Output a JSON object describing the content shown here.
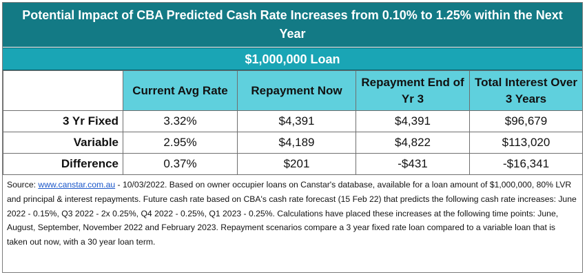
{
  "title": "Potential Impact of CBA Predicted Cash Rate Increases from 0.10% to 1.25% within the Next Year",
  "subtitle": "$1,000,000 Loan",
  "columns": [
    "Current Avg Rate",
    "Repayment Now",
    "Repayment End of Yr 3",
    "Total Interest Over 3 Years"
  ],
  "rows": [
    {
      "label": "3 Yr Fixed",
      "values": [
        "3.32%",
        "$4,391",
        "$4,391",
        "$96,679"
      ]
    },
    {
      "label": "Variable",
      "values": [
        "2.95%",
        "$4,189",
        "$4,822",
        "$113,020"
      ]
    },
    {
      "label": "Difference",
      "values": [
        "0.37%",
        "$201",
        "-$431",
        "-$16,341"
      ]
    }
  ],
  "note": {
    "prefix": "Source: ",
    "link": "www.canstar.com.au",
    "text": " - 10/03/2022. Based on owner occupier loans on Canstar's database, available for a loan amount of $1,000,000, 80% LVR and principal & interest repayments. Future cash rate based on CBA's cash rate forecast (15 Feb 22) that predicts the following cash rate increases: June 2022 - 0.15%, Q3 2022 - 2x 0.25%, Q4 2022 - 0.25%, Q1 2023 - 0.25%. Calculations have placed these increases at the following time points: June, August, September, November 2022 and February 2023. Repayment scenarios compare a 3 year fixed rate loan compared to a variable loan that is taken out now, with a 30 year loan term."
  }
}
